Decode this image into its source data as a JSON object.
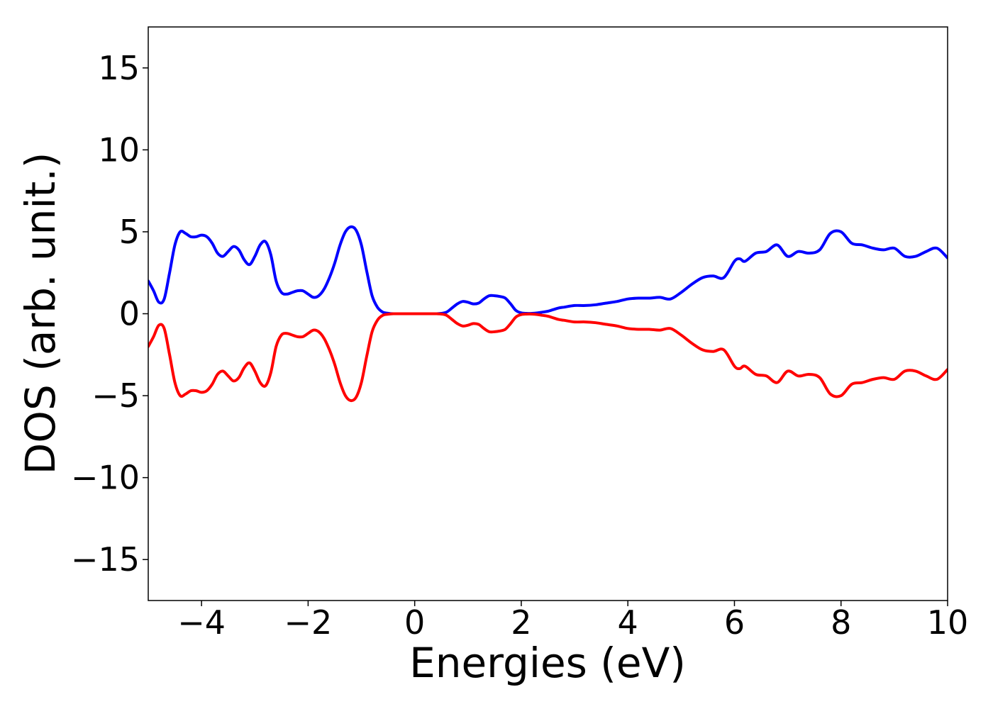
{
  "chart_data": {
    "type": "line",
    "title": "",
    "xlabel": "Energies (eV)",
    "ylabel": "DOS (arb. unit.)",
    "xlim": [
      -5,
      10
    ],
    "ylim": [
      -17.5,
      17.5
    ],
    "xticks": [
      -4,
      -2,
      0,
      2,
      4,
      6,
      8,
      10
    ],
    "xtick_labels": [
      "−4",
      "−2",
      "0",
      "2",
      "4",
      "6",
      "8",
      "10"
    ],
    "yticks": [
      -15,
      -10,
      -5,
      0,
      5,
      10,
      15
    ],
    "ytick_labels": [
      "−15",
      "−10",
      "−5",
      "0",
      "5",
      "10",
      "15"
    ],
    "grid": false,
    "legend": "none",
    "series": [
      {
        "color": "#0000ff",
        "x": [
          -5.0,
          -4.9,
          -4.8,
          -4.7,
          -4.6,
          -4.5,
          -4.4,
          -4.3,
          -4.2,
          -4.1,
          -4.0,
          -3.9,
          -3.8,
          -3.7,
          -3.6,
          -3.5,
          -3.4,
          -3.3,
          -3.2,
          -3.1,
          -3.0,
          -2.9,
          -2.8,
          -2.7,
          -2.6,
          -2.5,
          -2.4,
          -2.3,
          -2.2,
          -2.1,
          -2.0,
          -1.9,
          -1.8,
          -1.7,
          -1.6,
          -1.5,
          -1.4,
          -1.3,
          -1.2,
          -1.1,
          -1.0,
          -0.9,
          -0.8,
          -0.7,
          -0.6,
          -0.5,
          -0.4,
          -0.2,
          0.0,
          0.2,
          0.4,
          0.5,
          0.6,
          0.7,
          0.8,
          0.9,
          1.0,
          1.1,
          1.2,
          1.3,
          1.4,
          1.5,
          1.6,
          1.7,
          1.8,
          1.9,
          2.0,
          2.1,
          2.2,
          2.3,
          2.4,
          2.5,
          2.6,
          2.7,
          2.8,
          3.0,
          3.2,
          3.4,
          3.6,
          3.8,
          4.0,
          4.2,
          4.4,
          4.6,
          4.8,
          5.0,
          5.2,
          5.4,
          5.6,
          5.8,
          6.0,
          6.1,
          6.2,
          6.4,
          6.6,
          6.8,
          7.0,
          7.2,
          7.4,
          7.6,
          7.8,
          8.0,
          8.2,
          8.4,
          8.6,
          8.8,
          9.0,
          9.2,
          9.4,
          9.6,
          9.8,
          10.0
        ],
        "y": [
          2.0,
          1.4,
          0.7,
          0.9,
          2.5,
          4.2,
          5.0,
          4.9,
          4.7,
          4.7,
          4.8,
          4.7,
          4.3,
          3.7,
          3.5,
          3.8,
          4.1,
          3.9,
          3.3,
          3.0,
          3.5,
          4.2,
          4.4,
          3.6,
          2.0,
          1.3,
          1.2,
          1.3,
          1.4,
          1.4,
          1.2,
          1.0,
          1.1,
          1.5,
          2.2,
          3.1,
          4.2,
          5.0,
          5.3,
          5.1,
          4.2,
          2.6,
          1.1,
          0.4,
          0.1,
          0.03,
          0.0,
          0.0,
          0.0,
          0.0,
          0.0,
          0.02,
          0.1,
          0.35,
          0.6,
          0.75,
          0.7,
          0.6,
          0.65,
          0.9,
          1.1,
          1.1,
          1.05,
          0.95,
          0.6,
          0.2,
          0.05,
          0.02,
          0.02,
          0.05,
          0.1,
          0.15,
          0.25,
          0.35,
          0.4,
          0.5,
          0.5,
          0.55,
          0.65,
          0.75,
          0.9,
          0.95,
          0.95,
          1.0,
          0.9,
          1.3,
          1.8,
          2.2,
          2.3,
          2.2,
          3.2,
          3.35,
          3.2,
          3.7,
          3.8,
          4.2,
          3.5,
          3.8,
          3.7,
          3.9,
          4.9,
          5.0,
          4.3,
          4.2,
          4.0,
          3.9,
          4.0,
          3.5,
          3.5,
          3.8,
          4.0,
          3.4
        ]
      },
      {
        "color": "#ff0000",
        "x": [
          -5.0,
          -4.9,
          -4.8,
          -4.7,
          -4.6,
          -4.5,
          -4.4,
          -4.3,
          -4.2,
          -4.1,
          -4.0,
          -3.9,
          -3.8,
          -3.7,
          -3.6,
          -3.5,
          -3.4,
          -3.3,
          -3.2,
          -3.1,
          -3.0,
          -2.9,
          -2.8,
          -2.7,
          -2.6,
          -2.5,
          -2.4,
          -2.3,
          -2.2,
          -2.1,
          -2.0,
          -1.9,
          -1.8,
          -1.7,
          -1.6,
          -1.5,
          -1.4,
          -1.3,
          -1.2,
          -1.1,
          -1.0,
          -0.9,
          -0.8,
          -0.7,
          -0.6,
          -0.5,
          -0.4,
          -0.2,
          0.0,
          0.2,
          0.4,
          0.5,
          0.6,
          0.7,
          0.8,
          0.9,
          1.0,
          1.1,
          1.2,
          1.3,
          1.4,
          1.5,
          1.6,
          1.7,
          1.8,
          1.9,
          2.0,
          2.1,
          2.2,
          2.3,
          2.4,
          2.5,
          2.6,
          2.7,
          2.8,
          3.0,
          3.2,
          3.4,
          3.6,
          3.8,
          4.0,
          4.2,
          4.4,
          4.6,
          4.8,
          5.0,
          5.2,
          5.4,
          5.6,
          5.8,
          6.0,
          6.1,
          6.2,
          6.4,
          6.6,
          6.8,
          7.0,
          7.2,
          7.4,
          7.6,
          7.8,
          8.0,
          8.2,
          8.4,
          8.6,
          8.8,
          9.0,
          9.2,
          9.4,
          9.6,
          9.8,
          10.0
        ],
        "y": [
          -2.0,
          -1.4,
          -0.7,
          -0.9,
          -2.5,
          -4.2,
          -5.0,
          -4.9,
          -4.7,
          -4.7,
          -4.8,
          -4.7,
          -4.3,
          -3.7,
          -3.5,
          -3.8,
          -4.1,
          -3.9,
          -3.3,
          -3.0,
          -3.5,
          -4.2,
          -4.4,
          -3.6,
          -2.0,
          -1.3,
          -1.2,
          -1.3,
          -1.4,
          -1.4,
          -1.2,
          -1.0,
          -1.1,
          -1.5,
          -2.2,
          -3.1,
          -4.2,
          -5.0,
          -5.3,
          -5.1,
          -4.2,
          -2.6,
          -1.1,
          -0.4,
          -0.1,
          -0.03,
          0.0,
          0.0,
          0.0,
          0.0,
          0.0,
          -0.02,
          -0.1,
          -0.35,
          -0.6,
          -0.75,
          -0.7,
          -0.6,
          -0.65,
          -0.9,
          -1.1,
          -1.1,
          -1.05,
          -0.95,
          -0.6,
          -0.2,
          -0.05,
          -0.02,
          -0.02,
          -0.05,
          -0.1,
          -0.15,
          -0.25,
          -0.35,
          -0.4,
          -0.5,
          -0.5,
          -0.55,
          -0.65,
          -0.75,
          -0.9,
          -0.95,
          -0.95,
          -1.0,
          -0.9,
          -1.3,
          -1.8,
          -2.2,
          -2.3,
          -2.2,
          -3.2,
          -3.35,
          -3.2,
          -3.7,
          -3.8,
          -4.2,
          -3.5,
          -3.8,
          -3.7,
          -3.9,
          -4.9,
          -5.0,
          -4.3,
          -4.2,
          -4.0,
          -3.9,
          -4.0,
          -3.5,
          -3.5,
          -3.8,
          -4.0,
          -3.4
        ]
      }
    ]
  }
}
